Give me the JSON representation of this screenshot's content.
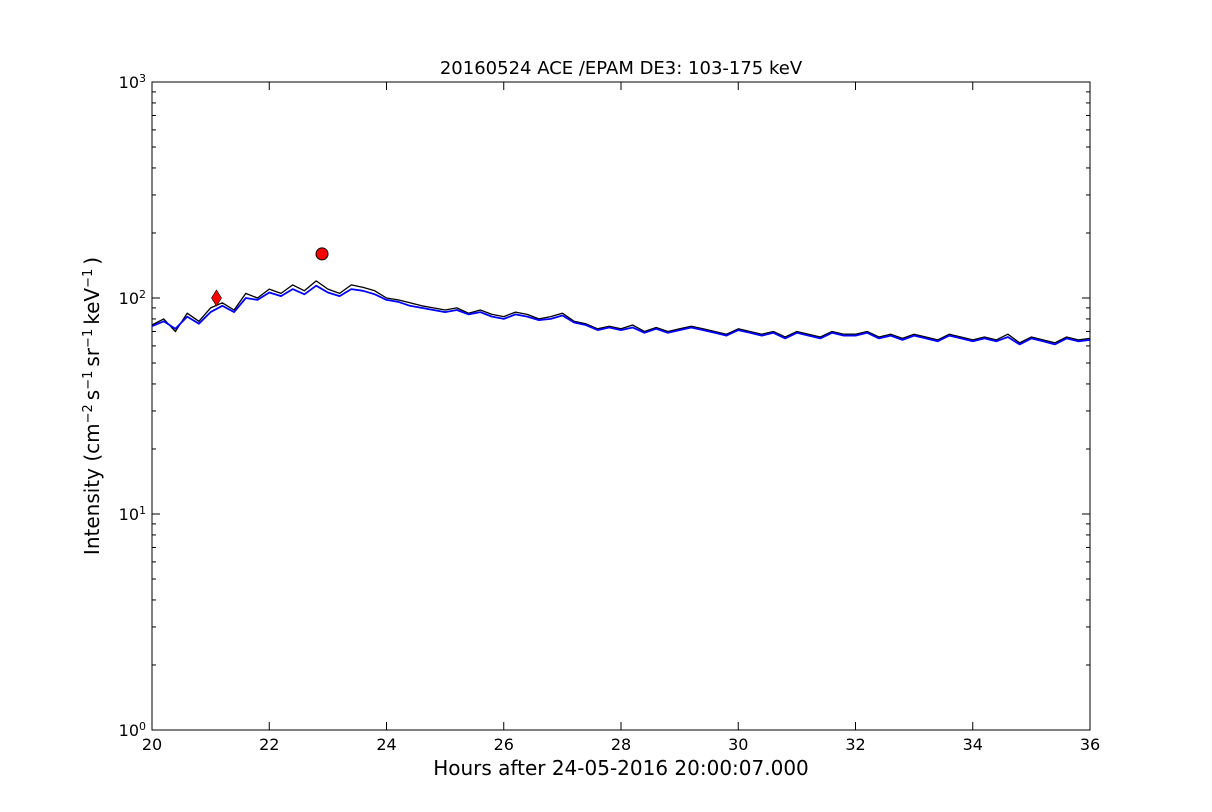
{
  "chart_data": {
    "type": "line",
    "title": "20160524 ACE /EPAM DE3: 103-175 keV",
    "xlabel": "Hours after 24-05-2016 20:00:07.000",
    "ylabel_parts": {
      "prefix": "Intensity (cm",
      "exp_cm": "−2",
      "s": "s",
      "exp_s": "−1",
      "sr": "sr",
      "exp_sr": "−1",
      "kev": "keV",
      "exp_kev": "−1",
      "suffix": ")"
    },
    "xlim": [
      20,
      36
    ],
    "ylim": [
      1,
      1000
    ],
    "yscale": "log",
    "grid": false,
    "x_ticks": [
      {
        "value": 20,
        "label": "20"
      },
      {
        "value": 22,
        "label": "22"
      },
      {
        "value": 24,
        "label": "24"
      },
      {
        "value": 26,
        "label": "26"
      },
      {
        "value": 28,
        "label": "28"
      },
      {
        "value": 30,
        "label": "30"
      },
      {
        "value": 32,
        "label": "32"
      },
      {
        "value": 34,
        "label": "34"
      },
      {
        "value": 36,
        "label": "36"
      }
    ],
    "y_ticks": [
      {
        "value": 1,
        "base": "10",
        "exp": "0"
      },
      {
        "value": 10,
        "base": "10",
        "exp": "1"
      },
      {
        "value": 100,
        "base": "10",
        "exp": "2"
      },
      {
        "value": 1000,
        "base": "10",
        "exp": "3"
      }
    ],
    "series": [
      {
        "color": "#000000",
        "style": "raw",
        "x": [
          20.0,
          20.2,
          20.4,
          20.6,
          20.8,
          21.0,
          21.2,
          21.4,
          21.6,
          21.8,
          22.0,
          22.2,
          22.4,
          22.6,
          22.8,
          23.0,
          23.2,
          23.4,
          23.6,
          23.8,
          24.0,
          24.2,
          24.4,
          24.6,
          24.8,
          25.0,
          25.2,
          25.4,
          25.6,
          25.8,
          26.0,
          26.2,
          26.4,
          26.6,
          26.8,
          27.0,
          27.2,
          27.4,
          27.6,
          27.8,
          28.0,
          28.2,
          28.4,
          28.6,
          28.8,
          29.0,
          29.2,
          29.4,
          29.6,
          29.8,
          30.0,
          30.2,
          30.4,
          30.6,
          30.8,
          31.0,
          31.2,
          31.4,
          31.6,
          31.8,
          32.0,
          32.2,
          32.4,
          32.6,
          32.8,
          33.0,
          33.2,
          33.4,
          33.6,
          33.8,
          34.0,
          34.2,
          34.4,
          34.6,
          34.8,
          35.0,
          35.2,
          35.4,
          35.6,
          35.8,
          36.0
        ],
        "y": [
          75,
          80,
          70,
          85,
          78,
          90,
          95,
          88,
          105,
          100,
          110,
          105,
          115,
          108,
          120,
          110,
          105,
          115,
          112,
          108,
          100,
          98,
          95,
          92,
          90,
          88,
          90,
          85,
          88,
          84,
          82,
          86,
          84,
          80,
          82,
          85,
          78,
          76,
          72,
          74,
          72,
          75,
          70,
          73,
          70,
          72,
          74,
          72,
          70,
          68,
          72,
          70,
          68,
          70,
          66,
          70,
          68,
          66,
          70,
          68,
          68,
          70,
          66,
          68,
          65,
          68,
          66,
          64,
          68,
          66,
          64,
          66,
          64,
          68,
          62,
          66,
          64,
          62,
          66,
          64,
          65
        ]
      },
      {
        "color": "#0000ff",
        "style": "smoothed",
        "x": [
          20.0,
          20.2,
          20.4,
          20.6,
          20.8,
          21.0,
          21.2,
          21.4,
          21.6,
          21.8,
          22.0,
          22.2,
          22.4,
          22.6,
          22.8,
          23.0,
          23.2,
          23.4,
          23.6,
          23.8,
          24.0,
          24.2,
          24.4,
          24.6,
          24.8,
          25.0,
          25.2,
          25.4,
          25.6,
          25.8,
          26.0,
          26.2,
          26.4,
          26.6,
          26.8,
          27.0,
          27.2,
          27.4,
          27.6,
          27.8,
          28.0,
          28.2,
          28.4,
          28.6,
          28.8,
          29.0,
          29.2,
          29.4,
          29.6,
          29.8,
          30.0,
          30.2,
          30.4,
          30.6,
          30.8,
          31.0,
          31.2,
          31.4,
          31.6,
          31.8,
          32.0,
          32.2,
          32.4,
          32.6,
          32.8,
          33.0,
          33.2,
          33.4,
          33.6,
          33.8,
          34.0,
          34.2,
          34.4,
          34.6,
          34.8,
          35.0,
          35.2,
          35.4,
          35.6,
          35.8,
          36.0
        ],
        "y": [
          74,
          78,
          72,
          82,
          76,
          86,
          92,
          86,
          100,
          98,
          106,
          102,
          110,
          104,
          114,
          106,
          102,
          110,
          108,
          104,
          98,
          96,
          92,
          90,
          88,
          86,
          88,
          84,
          86,
          82,
          80,
          84,
          82,
          79,
          80,
          83,
          77,
          75,
          71,
          73,
          71,
          73,
          69,
          72,
          69,
          71,
          73,
          71,
          69,
          67,
          71,
          69,
          67,
          69,
          65,
          69,
          67,
          65,
          69,
          67,
          67,
          69,
          65,
          67,
          64,
          67,
          65,
          63,
          67,
          65,
          63,
          65,
          63,
          66,
          61,
          65,
          63,
          61,
          65,
          63,
          64
        ]
      }
    ],
    "markers": [
      {
        "shape": "diamond",
        "x": 21.1,
        "y": 100,
        "color": "#ff0000"
      },
      {
        "shape": "circle",
        "x": 22.9,
        "y": 160,
        "color": "#ff0000"
      }
    ]
  }
}
